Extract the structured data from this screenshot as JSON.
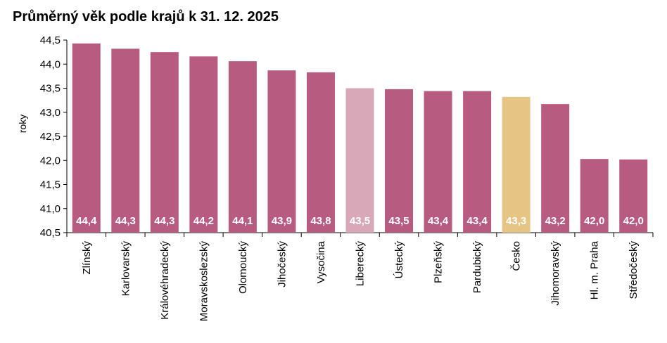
{
  "chart_data": {
    "type": "bar",
    "title": "Průměrný věk podle krajů k 31. 12. 2025",
    "ylabel": "roky",
    "xlabel": "",
    "ylim": [
      40.5,
      44.5
    ],
    "ytick_step": 0.5,
    "ytick_labels": [
      "40,5",
      "41,0",
      "41,5",
      "42,0",
      "42,5",
      "43,0",
      "43,5",
      "44,0",
      "44,5"
    ],
    "grid": false,
    "legend": "none",
    "categories": [
      "Zlínský",
      "Karlovarský",
      "Královéhradecký",
      "Moravskoslezský",
      "Olomoucký",
      "Jihočeský",
      "Vysočina",
      "Liberecký",
      "Ústecký",
      "Plzeňský",
      "Pardubický",
      "Česko",
      "Jihomoravský",
      "Hl. m. Praha",
      "Středočeský"
    ],
    "values": [
      44.43,
      44.32,
      44.25,
      44.16,
      44.06,
      43.87,
      43.83,
      43.5,
      43.48,
      43.44,
      43.44,
      43.32,
      43.17,
      42.03,
      42.02
    ],
    "data_labels": [
      "44,4",
      "44,3",
      "44,3",
      "44,2",
      "44,1",
      "43,9",
      "43,8",
      "43,5",
      "43,5",
      "43,4",
      "43,4",
      "43,3",
      "43,2",
      "42,0",
      "42,0"
    ],
    "colors": {
      "default": "#b85b80",
      "Liberecký": "#d8a8b8",
      "Česko": "#e6c484"
    }
  }
}
